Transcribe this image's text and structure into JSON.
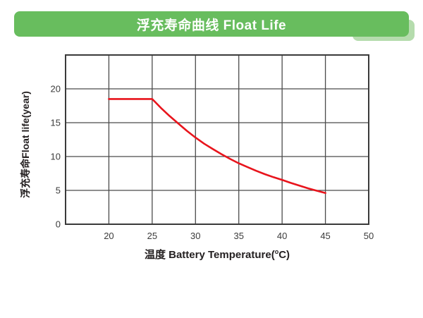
{
  "header": {
    "title": "浮充寿命曲线 Float Life",
    "bg_color": "#68bd5e",
    "shadow_color": "#b5dcad",
    "text_color": "#ffffff"
  },
  "chart_data": {
    "type": "line",
    "title": "浮充寿命曲线 Float Life",
    "xlabel": "温度 Battery Temperature(°C)",
    "xlabel_prefix": "温度 Battery Temperature(",
    "xlabel_sup": "o",
    "xlabel_suffix": "C)",
    "ylabel": "浮充寿命Float life(year)",
    "xlim": [
      15,
      50
    ],
    "ylim": [
      0,
      25
    ],
    "x_ticks": [
      20,
      25,
      30,
      35,
      40,
      45,
      50
    ],
    "y_ticks": [
      0,
      5,
      10,
      15,
      20
    ],
    "grid": true,
    "legend": false,
    "grid_color": "#4b4b4b",
    "frame_color": "#3a3a3a",
    "series": [
      {
        "name": "Float life",
        "color": "#e8141c",
        "points": [
          [
            20,
            18.5
          ],
          [
            25,
            18.5
          ],
          [
            26,
            17.2
          ],
          [
            27,
            16.0
          ],
          [
            28,
            14.9
          ],
          [
            29,
            13.8
          ],
          [
            30,
            12.8
          ],
          [
            31,
            11.9
          ],
          [
            32,
            11.1
          ],
          [
            33,
            10.35
          ],
          [
            34,
            9.65
          ],
          [
            35,
            9.0
          ],
          [
            36,
            8.45
          ],
          [
            37,
            7.9
          ],
          [
            38,
            7.4
          ],
          [
            39,
            6.95
          ],
          [
            40,
            6.55
          ],
          [
            41,
            6.1
          ],
          [
            42,
            5.7
          ],
          [
            43,
            5.3
          ],
          [
            44,
            4.95
          ],
          [
            45,
            4.6
          ]
        ]
      }
    ]
  }
}
